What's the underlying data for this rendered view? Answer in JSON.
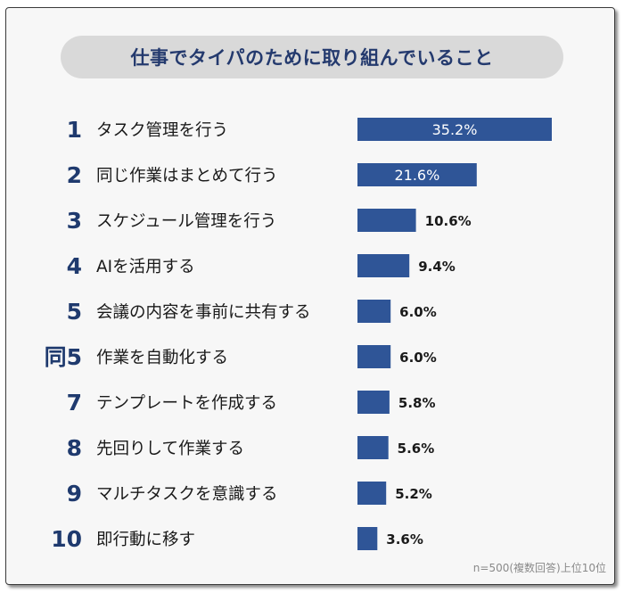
{
  "title": "仕事でタイパのために取り組んでいること",
  "note": "n=500(複数回答)上位10位",
  "colors": {
    "bar": "#2f5597",
    "rank": "#1f3a6e",
    "text": "#1a1a1a",
    "label_inside": "#ffffff"
  },
  "chart_data": {
    "type": "bar",
    "orientation": "horizontal",
    "ranks": [
      "1",
      "2",
      "3",
      "4",
      "5",
      "同5",
      "7",
      "8",
      "9",
      "10"
    ],
    "categories": [
      "タスク管理を行う",
      "同じ作業はまとめて行う",
      "スケジュール管理を行う",
      "AIを活用する",
      "会議の内容を事前に共有する",
      "作業を自動化する",
      "テンプレートを作成する",
      "先回りして作業する",
      "マルチタスクを意識する",
      "即行動に移す"
    ],
    "values": [
      35.2,
      21.6,
      10.6,
      9.4,
      6.0,
      6.0,
      5.8,
      5.6,
      5.2,
      3.6
    ],
    "value_labels": [
      "35.2%",
      "21.6%",
      "10.6%",
      "9.4%",
      "6.0%",
      "6.0%",
      "5.8%",
      "5.6%",
      "5.2%",
      "3.6%"
    ],
    "unit": "%"
  }
}
